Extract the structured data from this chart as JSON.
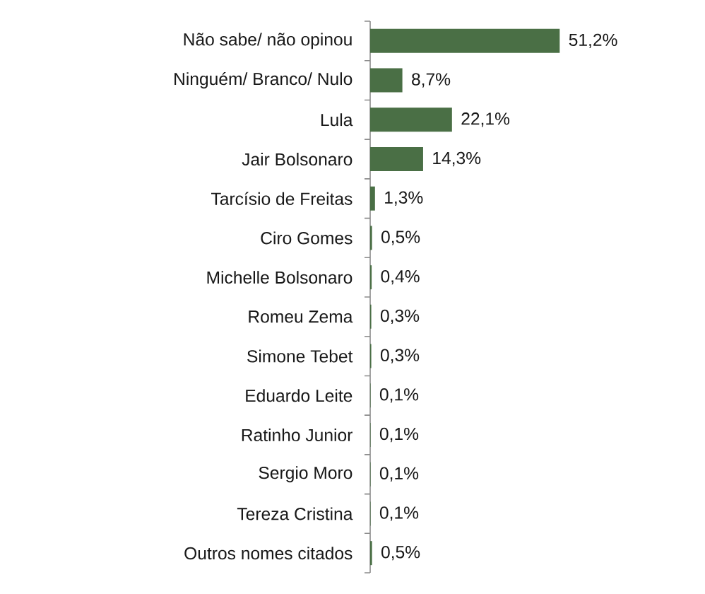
{
  "chart_data": {
    "type": "bar",
    "orientation": "horizontal",
    "categories": [
      "Não sabe/ não opinou",
      "Ninguém/ Branco/ Nulo",
      "Lula",
      "Jair Bolsonaro",
      "Tarcísio de Freitas",
      "Ciro Gomes",
      "Michelle Bolsonaro",
      "Romeu Zema",
      "Simone Tebet",
      "Eduardo Leite",
      "Ratinho Junior",
      "Sergio Moro",
      "Tereza Cristina",
      "Outros nomes citados"
    ],
    "values": [
      51.2,
      8.7,
      22.1,
      14.3,
      1.3,
      0.5,
      0.4,
      0.3,
      0.3,
      0.1,
      0.1,
      0.1,
      0.1,
      0.5
    ],
    "value_labels": [
      "51,2%",
      "8,7%",
      "22,1%",
      "14,3%",
      "1,3%",
      "0,5%",
      "0,4%",
      "0,3%",
      "0,3%",
      "0,1%",
      "0,1%",
      "0,1%",
      "0,1%",
      "0,5%"
    ],
    "color": "#4a6f45",
    "tick_labels": "y"
  }
}
